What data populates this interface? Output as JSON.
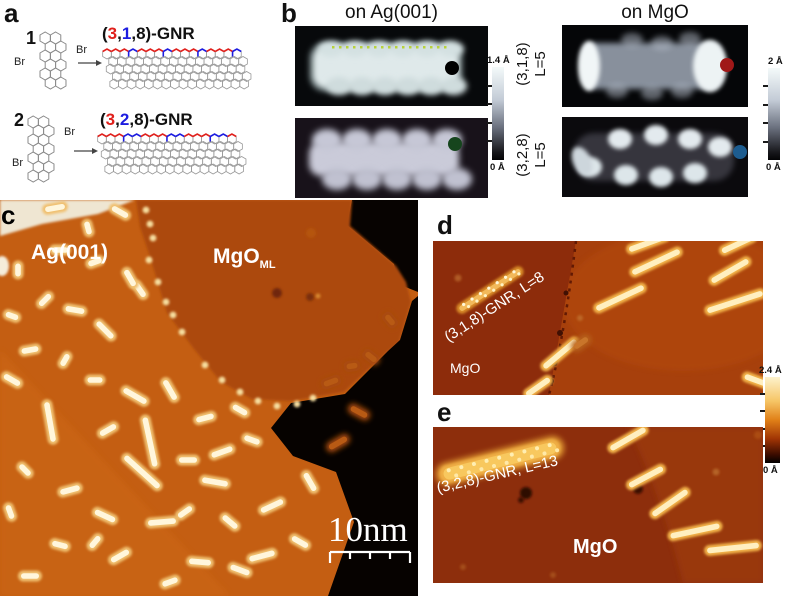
{
  "panels": {
    "a": {
      "label": "a",
      "edge_colors": {
        "red": "#e0201c",
        "blue": "#1c1ce0",
        "bond_grey": "#8a8a8a"
      },
      "reactions": [
        {
          "number": "1",
          "br_left": "Br",
          "br_right": "Br",
          "title": {
            "p1": "(",
            "p2": "3",
            "p3": ",",
            "p4": "1",
            "p5": ",8)-GNR"
          }
        },
        {
          "number": "2",
          "br_left": "Br",
          "br_right": "Br",
          "title": {
            "p1": "(",
            "p2": "3",
            "p3": ",",
            "p4": "2",
            "p5": ",8)-GNR"
          }
        }
      ]
    },
    "b": {
      "label": "b",
      "title_left": "on Ag(001)",
      "title_right": "on MgO",
      "row_labels": [
        {
          "line1": "(3,1,8)",
          "line2": "L=5"
        },
        {
          "line1": "(3,2,8)",
          "line2": "L=5"
        }
      ],
      "colorbar_ag": {
        "top": "1.4 Å",
        "bottom": "0 Å"
      },
      "colorbar_mgo": {
        "top": "2 Å",
        "bottom": "0 Å"
      },
      "marker_colors": {
        "ag_318": "#000000",
        "ag_328": "#16451d",
        "mgo_318": "#a01818",
        "mgo_328": "#1d5c8f"
      },
      "overlay": {
        "dotted_line_color": "#b9d23c"
      }
    },
    "c": {
      "label": "c",
      "labels": {
        "substrate1": "Ag(001)",
        "substrate2": "MgO",
        "substrate2_sub": "ML"
      },
      "scalebar": {
        "text": "10nm"
      }
    },
    "d": {
      "label": "d",
      "annotation": "(3,1,8)-GNR, L=8",
      "substrate": "MgO"
    },
    "e": {
      "label": "e",
      "annotation": "(3,2,8)-GNR, L=13",
      "substrate": "MgO"
    },
    "colorbar_de": {
      "top": "2.4 Å",
      "bottom": "0 Å"
    }
  }
}
